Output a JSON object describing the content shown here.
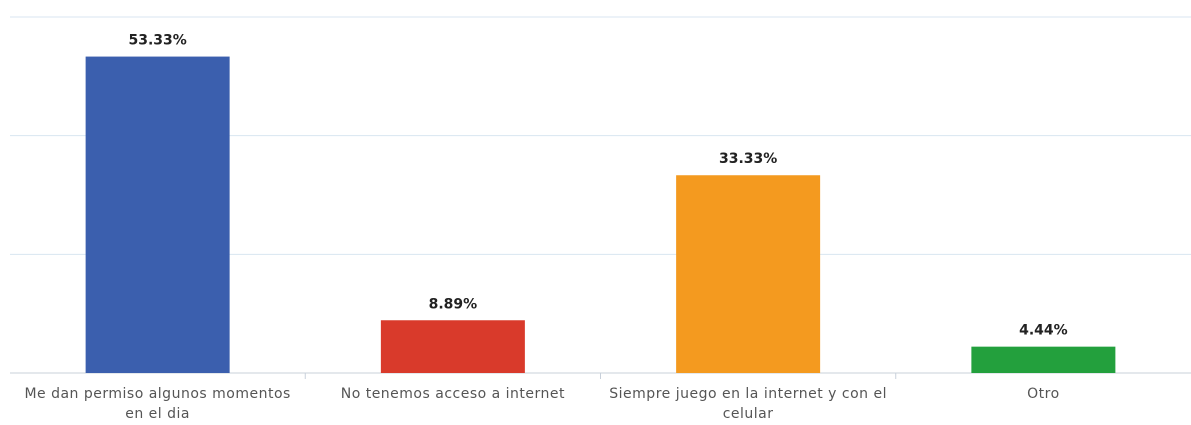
{
  "chart_data": {
    "type": "bar",
    "categories": [
      "Me dan permiso algunos momentos en el dia",
      "No tenemos acceso a internet",
      "Siempre juego en la internet y con el celular",
      "Otro"
    ],
    "values": [
      53.33,
      8.89,
      33.33,
      4.44
    ],
    "value_labels": [
      "53.33%",
      "8.89%",
      "33.33%",
      "4.44%"
    ],
    "colors": [
      "#3b5fae",
      "#d93a2b",
      "#f49a1f",
      "#23a03d"
    ],
    "ylim": [
      0,
      60
    ],
    "yticks": [
      0,
      20,
      40,
      60
    ],
    "grid": true
  }
}
